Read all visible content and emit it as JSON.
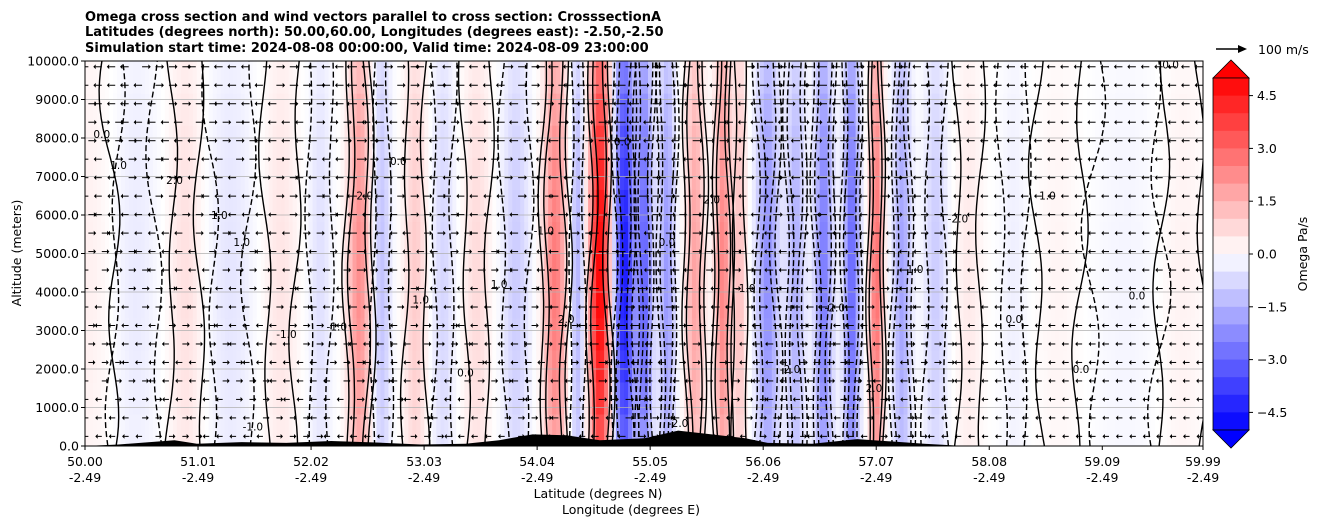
{
  "chart_data": {
    "type": "heatmap",
    "title_lines": [
      "Omega cross section and wind vectors parallel to cross section: CrosssectionA",
      "Latitudes (degrees north): 50.00,60.00, Longitudes (degrees east): -2.50,-2.50",
      "Simulation start time: 2024-08-08 00:00:00, Valid time: 2024-08-09 23:00:00"
    ],
    "ylabel": "Altitude (meters)",
    "xlabel": "Latitude (degrees N)",
    "xlabel2": "Longitude (degrees E)",
    "ylim": [
      0,
      10000
    ],
    "xlim": [
      50.0,
      59.99
    ],
    "yticks": [
      "0.0",
      "1000.0",
      "2000.0",
      "3000.0",
      "4000.0",
      "5000.0",
      "6000.0",
      "7000.0",
      "8000.0",
      "9000.0",
      "10000.0"
    ],
    "xticks": [
      {
        "lat": "50.00",
        "lon": "-2.49"
      },
      {
        "lat": "51.01",
        "lon": "-2.49"
      },
      {
        "lat": "52.02",
        "lon": "-2.49"
      },
      {
        "lat": "53.03",
        "lon": "-2.49"
      },
      {
        "lat": "54.04",
        "lon": "-2.49"
      },
      {
        "lat": "55.05",
        "lon": "-2.49"
      },
      {
        "lat": "56.06",
        "lon": "-2.49"
      },
      {
        "lat": "57.07",
        "lon": "-2.49"
      },
      {
        "lat": "58.08",
        "lon": "-2.49"
      },
      {
        "lat": "59.09",
        "lon": "-2.49"
      },
      {
        "lat": "59.99",
        "lon": "-2.49"
      }
    ],
    "grid": "horizontal",
    "colorbar": {
      "label": "Omega Pa/s",
      "range": [
        -5.0,
        5.0
      ],
      "ticks": [
        "4.5",
        "3.0",
        "1.5",
        "0.0",
        "−1.5",
        "−3.0",
        "−4.5"
      ],
      "extend": "both",
      "colormap": "bwr"
    },
    "quiver_key": {
      "label": "100 m/s"
    },
    "contour_labels": [
      "0.0",
      "1.0",
      "-1.0",
      "2.0",
      "-2.0"
    ],
    "bands": [
      {
        "lat": 50.0,
        "w": 0.25,
        "v": 0.3
      },
      {
        "lat": 50.45,
        "w": 0.2,
        "v": -0.4
      },
      {
        "lat": 50.9,
        "w": 0.15,
        "v": 0.6
      },
      {
        "lat": 51.3,
        "w": 0.2,
        "v": -0.5
      },
      {
        "lat": 51.75,
        "w": 0.15,
        "v": 0.5
      },
      {
        "lat": 52.1,
        "w": 0.1,
        "v": -0.6
      },
      {
        "lat": 52.45,
        "w": 0.1,
        "v": 2.2
      },
      {
        "lat": 52.65,
        "w": 0.08,
        "v": -1.2
      },
      {
        "lat": 52.95,
        "w": 0.1,
        "v": 1.0
      },
      {
        "lat": 53.2,
        "w": 0.1,
        "v": -0.8
      },
      {
        "lat": 53.5,
        "w": 0.12,
        "v": 0.7
      },
      {
        "lat": 53.85,
        "w": 0.12,
        "v": -1.0
      },
      {
        "lat": 54.2,
        "w": 0.1,
        "v": 2.6
      },
      {
        "lat": 54.4,
        "w": 0.06,
        "v": -1.5
      },
      {
        "lat": 54.6,
        "w": 0.09,
        "v": 5.0
      },
      {
        "lat": 54.82,
        "w": 0.09,
        "v": -4.5
      },
      {
        "lat": 55.0,
        "w": 0.07,
        "v": -3.0
      },
      {
        "lat": 55.2,
        "w": 0.07,
        "v": -2.0
      },
      {
        "lat": 55.45,
        "w": 0.08,
        "v": 1.8
      },
      {
        "lat": 55.7,
        "w": 0.07,
        "v": 2.4
      },
      {
        "lat": 55.85,
        "w": 0.06,
        "v": 1.2
      },
      {
        "lat": 56.1,
        "w": 0.1,
        "v": -2.2
      },
      {
        "lat": 56.35,
        "w": 0.08,
        "v": -1.6
      },
      {
        "lat": 56.6,
        "w": 0.08,
        "v": -2.6
      },
      {
        "lat": 56.85,
        "w": 0.07,
        "v": -3.0
      },
      {
        "lat": 57.07,
        "w": 0.06,
        "v": 2.8
      },
      {
        "lat": 57.3,
        "w": 0.08,
        "v": -1.8
      },
      {
        "lat": 57.6,
        "w": 0.1,
        "v": -1.0
      },
      {
        "lat": 57.9,
        "w": 0.12,
        "v": 0.4
      },
      {
        "lat": 58.3,
        "w": 0.12,
        "v": -0.3
      },
      {
        "lat": 58.7,
        "w": 0.2,
        "v": 0.2
      },
      {
        "lat": 59.3,
        "w": 0.3,
        "v": -0.2
      },
      {
        "lat": 59.8,
        "w": 0.2,
        "v": 0.25
      }
    ],
    "terrain": [
      {
        "lat": 50.0,
        "h": 0
      },
      {
        "lat": 50.3,
        "h": 40
      },
      {
        "lat": 50.8,
        "h": 150
      },
      {
        "lat": 51.0,
        "h": 60
      },
      {
        "lat": 51.4,
        "h": 100
      },
      {
        "lat": 51.8,
        "h": 80
      },
      {
        "lat": 52.2,
        "h": 130
      },
      {
        "lat": 52.6,
        "h": 90
      },
      {
        "lat": 53.0,
        "h": 40
      },
      {
        "lat": 53.4,
        "h": 60
      },
      {
        "lat": 53.7,
        "h": 150
      },
      {
        "lat": 54.0,
        "h": 300
      },
      {
        "lat": 54.3,
        "h": 280
      },
      {
        "lat": 54.6,
        "h": 150
      },
      {
        "lat": 55.0,
        "h": 200
      },
      {
        "lat": 55.3,
        "h": 400
      },
      {
        "lat": 55.6,
        "h": 300
      },
      {
        "lat": 55.9,
        "h": 200
      },
      {
        "lat": 56.1,
        "h": 80
      },
      {
        "lat": 56.5,
        "h": 60
      },
      {
        "lat": 56.9,
        "h": 180
      },
      {
        "lat": 57.2,
        "h": 120
      },
      {
        "lat": 57.5,
        "h": 60
      },
      {
        "lat": 57.8,
        "h": 10
      },
      {
        "lat": 58.0,
        "h": 0
      },
      {
        "lat": 59.99,
        "h": 0
      }
    ]
  }
}
